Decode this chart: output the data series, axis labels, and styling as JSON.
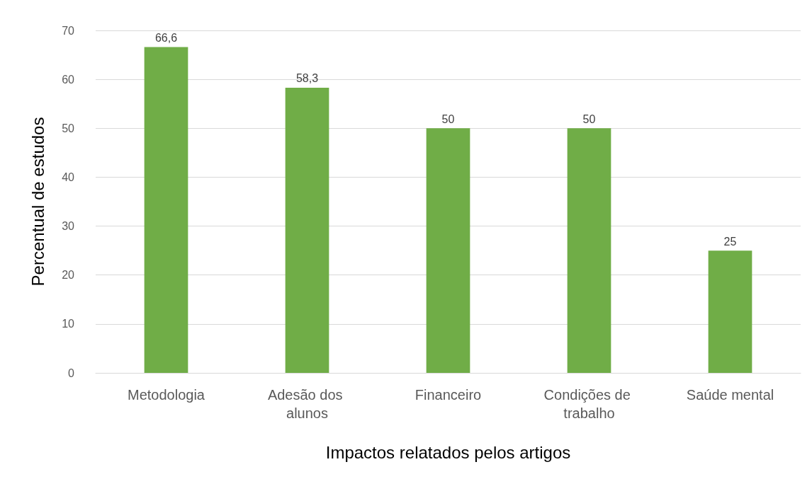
{
  "chart_data": {
    "type": "bar",
    "xlabel": "Impactos relatados pelos artigos",
    "ylabel": "Percentual de estudos",
    "categories": [
      "Metodologia",
      "Adesão dos alunos",
      "Financeiro",
      "Condições de trabalho",
      "Saúde mental"
    ],
    "values": [
      66.6,
      58.3,
      50,
      50,
      25
    ],
    "value_labels": [
      "66,6",
      "58,3",
      "50",
      "50",
      "25"
    ],
    "color": "#70ad47",
    "ylim": [
      0,
      70
    ],
    "yticks": [
      0,
      10,
      20,
      30,
      40,
      50,
      60,
      70
    ],
    "grid": "y"
  }
}
